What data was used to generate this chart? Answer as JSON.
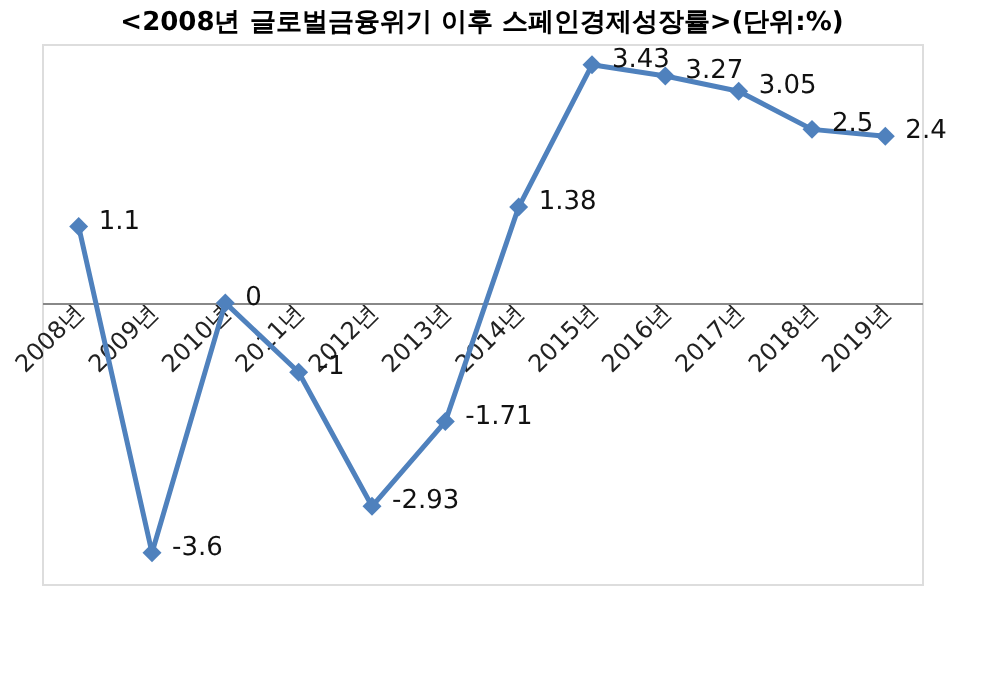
{
  "chart_data": {
    "type": "line",
    "title": "<2008년 글로벌금융위기 이후 스페인경제성장률>(단위:%)",
    "categories": [
      "2008년",
      "2009년",
      "2010년",
      "2011년",
      "2012년",
      "2013년",
      "2014년",
      "2015년",
      "2016년",
      "2017년",
      "2018년",
      "2019년"
    ],
    "series": [
      {
        "color": "#4f81bd",
        "values": [
          1.1,
          -3.6,
          0,
          -1,
          -2.93,
          -1.71,
          1.38,
          3.43,
          3.27,
          3.05,
          2.5,
          2.4
        ]
      }
    ],
    "data_labels": true,
    "marker": "diamond",
    "line_style": "solid",
    "grid": false
  }
}
